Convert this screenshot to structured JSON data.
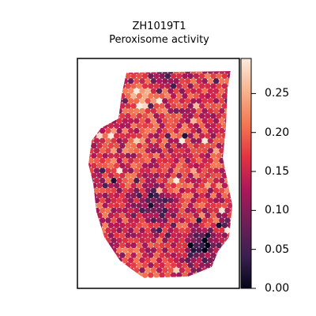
{
  "chart_data": {
    "type": "heatmap",
    "title": "ZH1019T1",
    "subtitle": "Peroxisome activity",
    "xlabel": "",
    "ylabel": "",
    "grid": false,
    "colorbar": {
      "cmap": "rocket",
      "range": [
        0.0,
        0.295
      ],
      "ticks": [
        0.0,
        0.05,
        0.1,
        0.15,
        0.2,
        0.25
      ],
      "tick_labels": [
        "0.00",
        "0.05",
        "0.10",
        "0.15",
        "0.20",
        "0.25"
      ],
      "placement": "right"
    },
    "value_summary": {
      "typical_range": [
        0.1,
        0.22
      ],
      "max_spot": 0.29,
      "min_spot": 0.0,
      "low_regions": [
        "center-lower",
        "lower-right",
        "upper-middle"
      ],
      "high_regions": [
        "upper-left",
        "right-middle"
      ]
    },
    "spot_shape": "hexagonal spots (spatial transcriptomics tissue)"
  },
  "colors": {
    "c0": "#03051a",
    "c1": "#3b1f4f",
    "c2": "#701f57",
    "c3": "#ad1759",
    "c4": "#e13342",
    "c5": "#f37651",
    "c6": "#f6b48f",
    "c7": "#faebdd"
  }
}
